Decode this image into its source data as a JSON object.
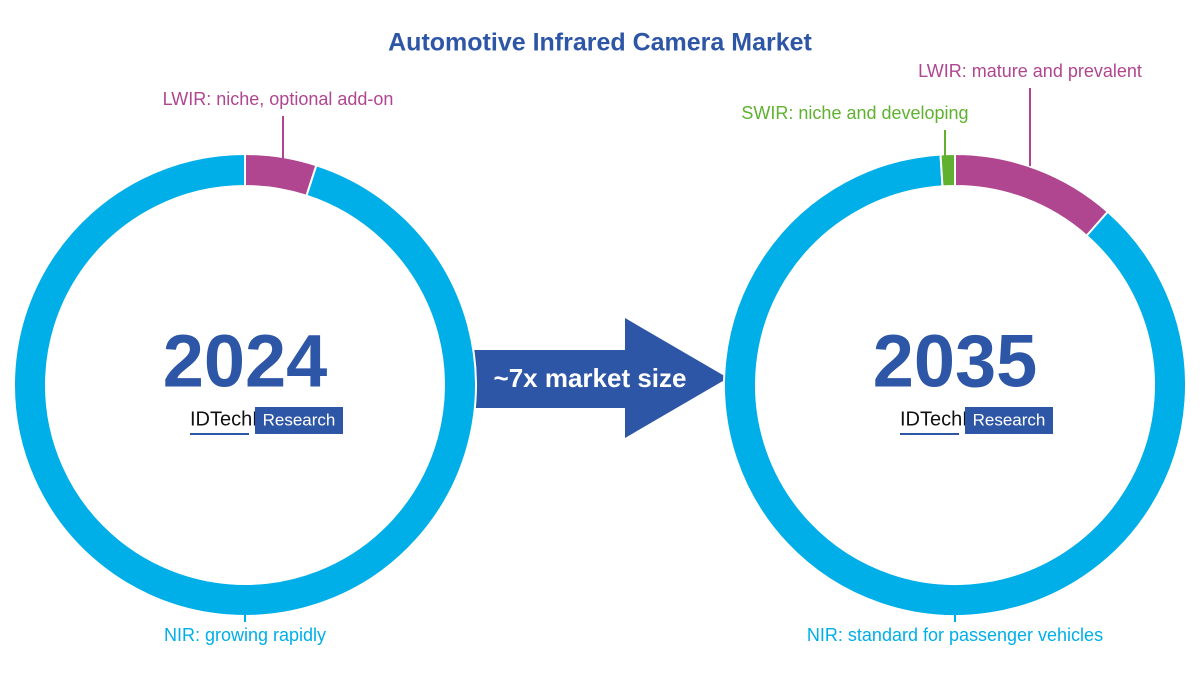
{
  "title": "Automotive Infrared Camera Market",
  "arrow_label": "~7x market size",
  "chart_data": [
    {
      "type": "pie",
      "center_label": "2024",
      "logo": [
        "IDTechEx",
        "Research"
      ],
      "categories": [
        "LWIR: niche, optional add-on",
        "NIR: growing rapidly"
      ],
      "values": [
        5,
        95
      ],
      "colors": [
        "#b0468f",
        "#00aee8"
      ]
    },
    {
      "type": "pie",
      "center_label": "2035",
      "logo": [
        "IDTechEx",
        "Research"
      ],
      "categories": [
        "LWIR: mature and prevalent",
        "NIR: standard for passenger vehicles",
        "SWIR: niche and developing"
      ],
      "values": [
        11.5,
        87.5,
        1
      ],
      "colors": [
        "#b0468f",
        "#00aee8",
        "#5fb12f"
      ]
    }
  ]
}
